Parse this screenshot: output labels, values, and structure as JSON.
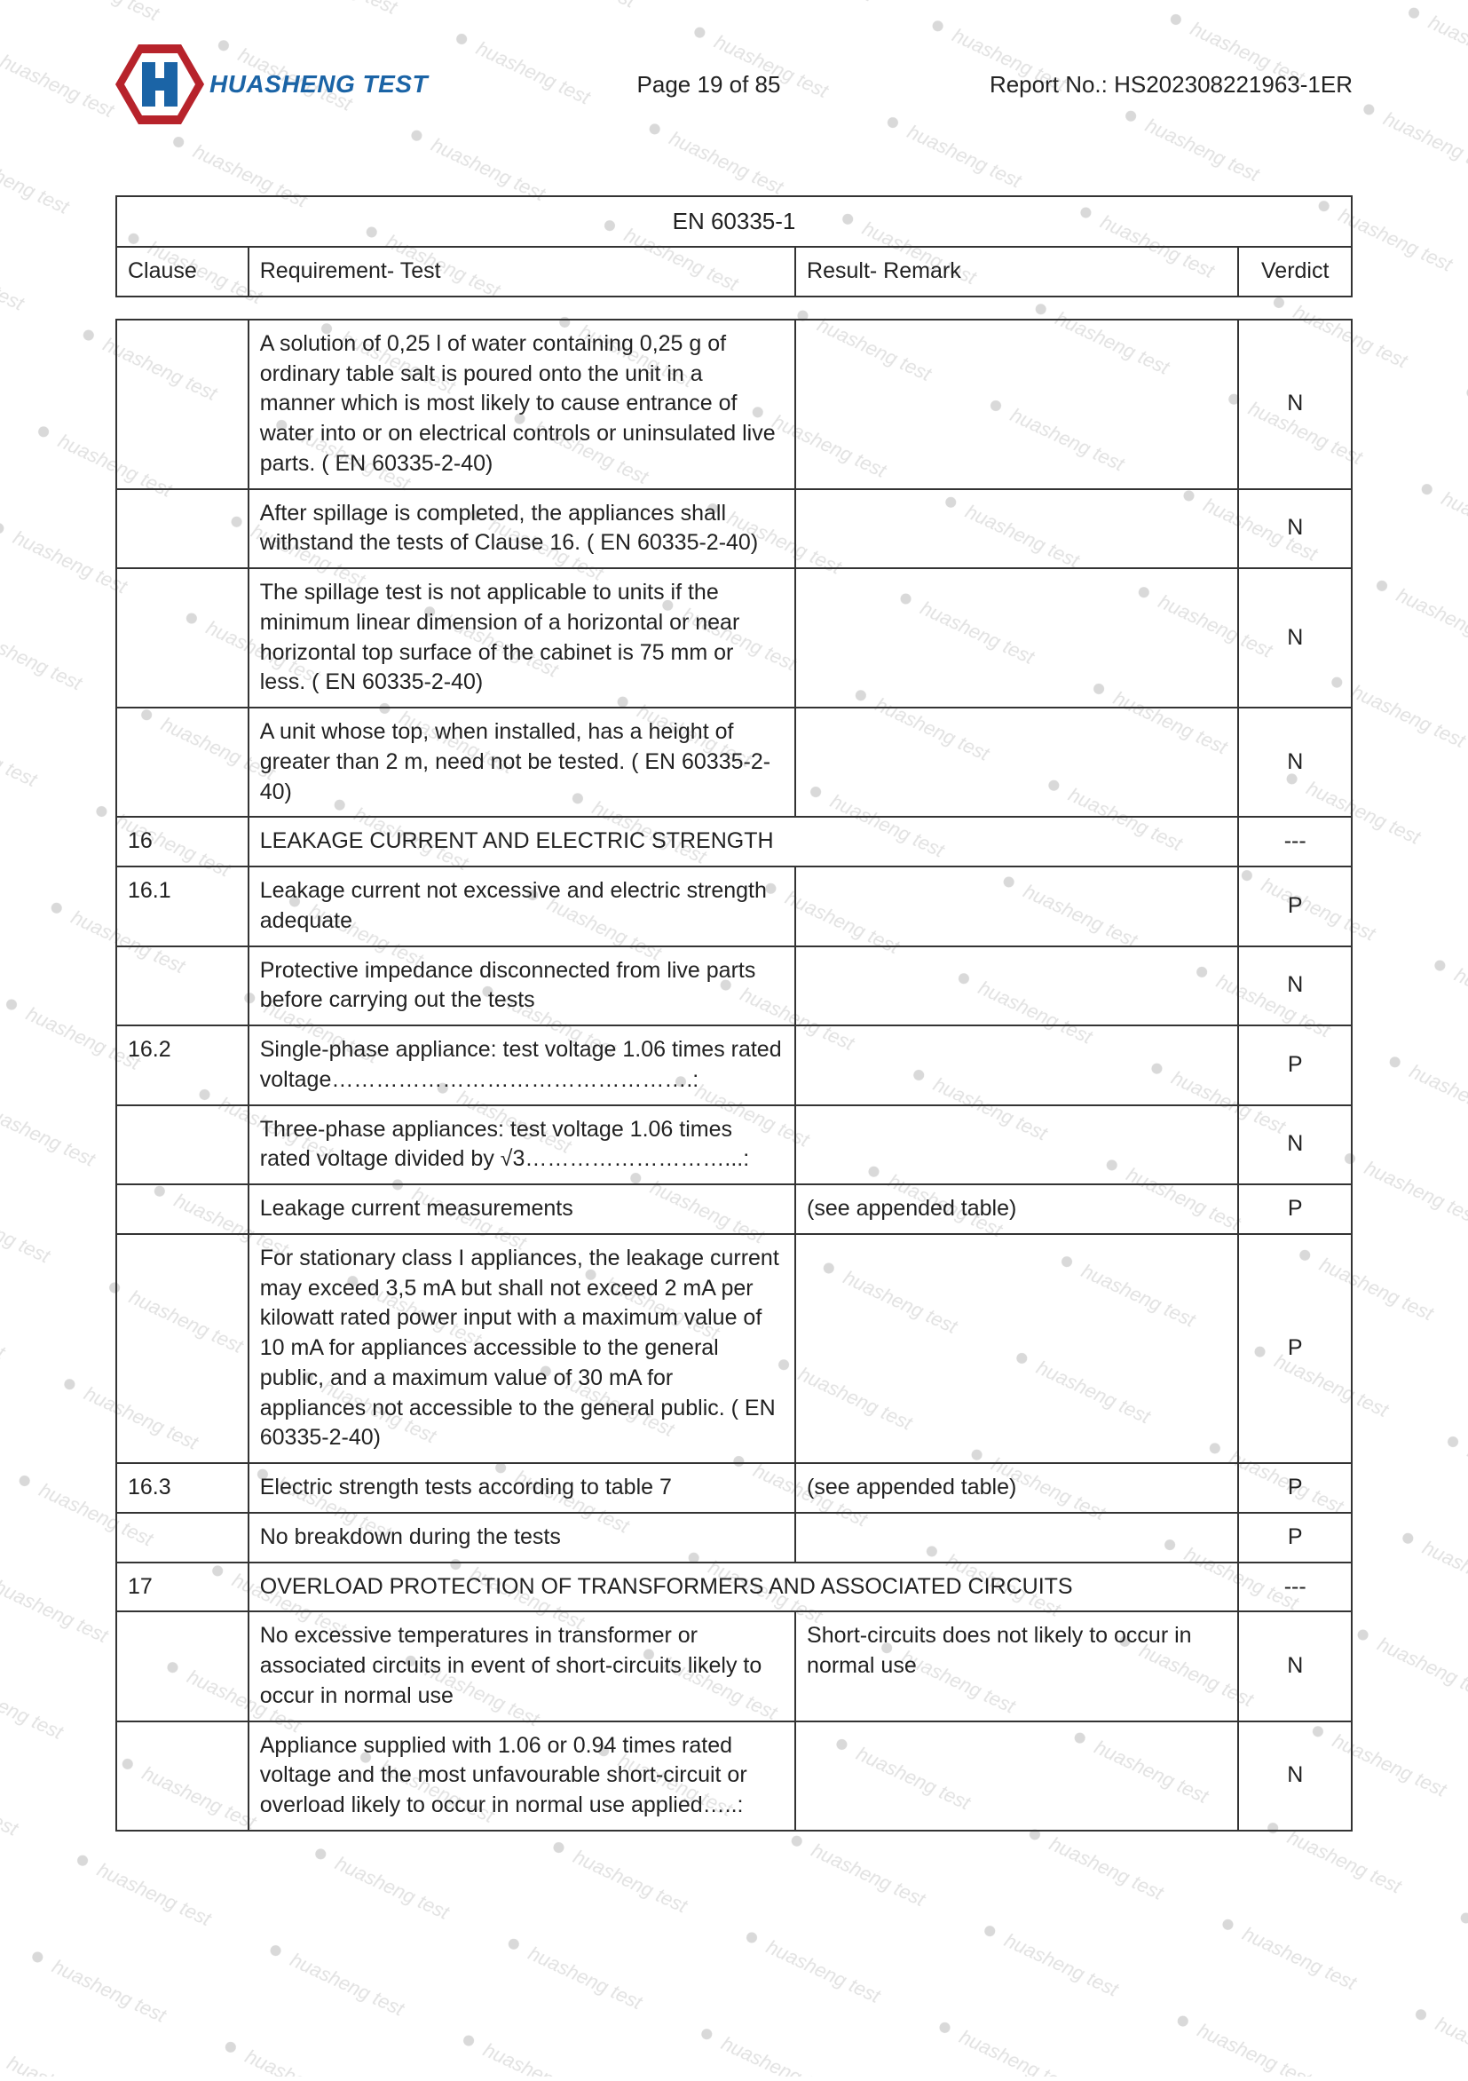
{
  "header": {
    "brand": "HUASHENG TEST",
    "page_label": "Page 19 of 85",
    "report_no": "Report No.: HS202308221963-1ER",
    "logo_colors": {
      "red": "#b7232b",
      "blue": "#1b64a6",
      "text": "#1b64a6"
    }
  },
  "table_header": {
    "standard": "EN 60335-1",
    "columns": {
      "clause": "Clause",
      "requirement": "Requirement- Test",
      "result": "Result- Remark",
      "verdict": "Verdict"
    }
  },
  "rows": [
    {
      "clause": "",
      "requirement": "A solution of 0,25 l of water containing 0,25 g of ordinary table salt is poured onto the unit in a manner which is most likely to cause entrance of water into or on electrical controls or uninsulated live parts. ( EN 60335-2-40)",
      "result": "",
      "verdict": "N"
    },
    {
      "clause": "",
      "requirement": "After spillage is completed, the appliances shall withstand the tests of Clause 16. ( EN 60335-2-40)",
      "result": "",
      "verdict": "N"
    },
    {
      "clause": "",
      "requirement": "The spillage test is not applicable to units if the minimum linear dimension of a horizontal or near horizontal top surface of the cabinet is 75 mm or less. ( EN 60335-2-40)",
      "result": "",
      "verdict": "N"
    },
    {
      "clause": "",
      "requirement": "A unit whose top, when installed, has a height of greater than 2 m, need not be tested. ( EN 60335-2-40)",
      "result": "",
      "verdict": "N"
    },
    {
      "clause": "16",
      "requirement": "LEAKAGE CURRENT AND ELECTRIC STRENGTH",
      "result": "__SPAN__",
      "verdict": "---"
    },
    {
      "clause": "16.1",
      "requirement": "Leakage current not excessive and electric strength adequate",
      "result": "",
      "verdict": "P"
    },
    {
      "clause": "",
      "requirement": "Protective impedance disconnected from live parts before carrying out the tests",
      "result": "",
      "verdict": "N"
    },
    {
      "clause": "16.2",
      "requirement": "Single-phase appliance: test voltage 1.06 times rated voltage………………………………………….:",
      "result": "",
      "verdict": "P"
    },
    {
      "clause": "",
      "requirement": "Three-phase appliances: test voltage 1.06 times rated voltage divided by √3………………………...:",
      "result": "",
      "verdict": "N"
    },
    {
      "clause": "",
      "requirement": "Leakage current measurements",
      "result": "(see appended table)",
      "verdict": "P"
    },
    {
      "clause": "",
      "requirement": "For stationary class I appliances, the leakage current may exceed 3,5 mA but shall not exceed 2 mA per kilowatt rated power input with a maximum value of 10 mA for appliances accessible to the general public, and a maximum value of 30 mA for appliances not accessible to the general public. ( EN 60335-2-40)",
      "result": "",
      "verdict": "P"
    },
    {
      "clause": "16.3",
      "requirement": "Electric strength tests according to table 7",
      "result": "(see appended table)",
      "verdict": "P"
    },
    {
      "clause": "",
      "requirement": "No breakdown during the tests",
      "result": "",
      "verdict": "P"
    },
    {
      "clause": "17",
      "requirement": "OVERLOAD PROTECTION OF TRANSFORMERS AND ASSOCIATED CIRCUITS",
      "result": "__SPAN__",
      "verdict": "---"
    },
    {
      "clause": "",
      "requirement": "No excessive temperatures in transformer or associated circuits in event of short-circuits likely to occur in normal use",
      "result": "Short-circuits does not likely to occur in normal use",
      "verdict": "N"
    },
    {
      "clause": "",
      "requirement": "Appliance supplied with 1.06 or 0.94 times rated voltage and the most unfavourable short-circuit or overload likely to occur in normal use applied…..:",
      "result": "",
      "verdict": "N"
    }
  ],
  "style": {
    "font_size_body": 25,
    "border_color": "#333333",
    "text_color": "#222222",
    "background": "#ffffff",
    "col_widths": {
      "clause": 140,
      "requirement": 580,
      "result": 470,
      "verdict": 120
    }
  }
}
